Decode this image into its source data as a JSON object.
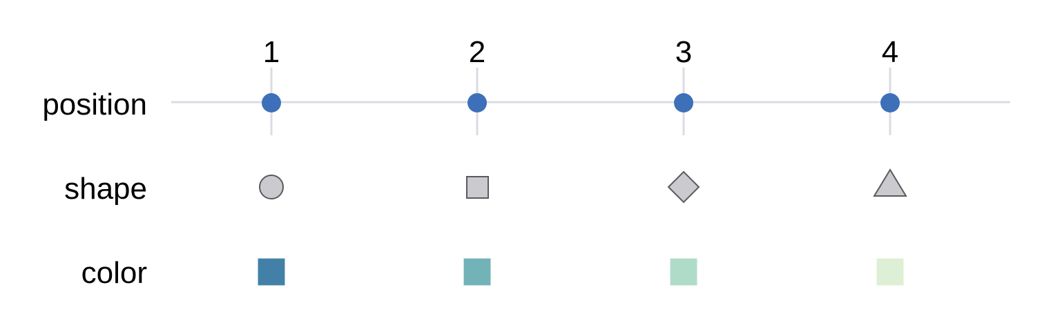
{
  "columns": [
    {
      "label": "1",
      "shape": "circle-icon",
      "color": "#4380a8"
    },
    {
      "label": "2",
      "shape": "square-icon",
      "color": "#72b3b8"
    },
    {
      "label": "3",
      "shape": "diamond-icon",
      "color": "#afdcc8"
    },
    {
      "label": "4",
      "shape": "triangle-icon",
      "color": "#ddefd4"
    }
  ],
  "rows": {
    "position": "position",
    "shape": "shape",
    "color": "color"
  },
  "style": {
    "point_color": "#3d70b8",
    "grid_color": "#dcdbe3",
    "shape_fill": "#cbcbcf",
    "shape_stroke": "#5a5a5e"
  }
}
